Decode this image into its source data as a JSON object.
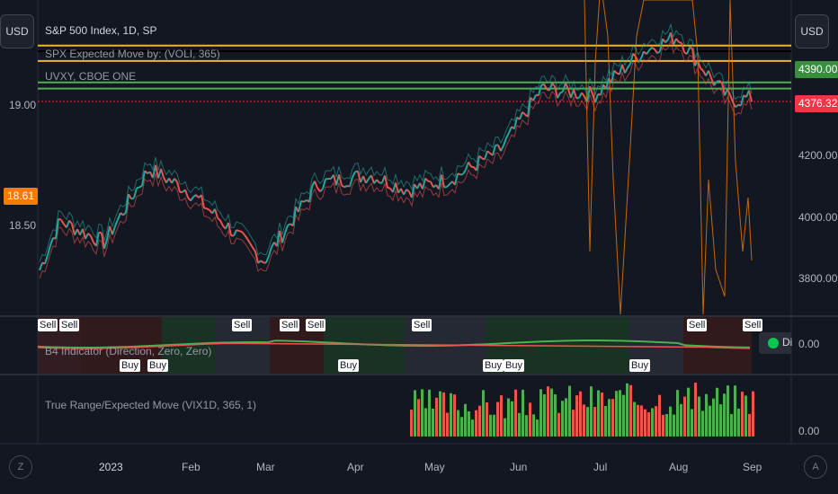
{
  "header": {
    "currency_left": "USD",
    "currency_right": "USD",
    "symbol_legend": "S&P 500 Index, 1D, SP",
    "indicator1": "SPX Expected Move by: (VOLI, 365)",
    "indicator2": "UVXY, CBOE ONE"
  },
  "price_axis": {
    "ticks": [
      "4200.00",
      "4000.00",
      "3800.00"
    ],
    "badge_upper": "4390.00",
    "badge_lower": "4376.32"
  },
  "left_axis": {
    "ticks": [
      "19.00",
      "18.50"
    ],
    "badge": "18.61"
  },
  "pane2": {
    "title": "B4 Indicator (Direction, Zero, Zero)",
    "tick": "0.00",
    "legend_dot_label": "Di",
    "sell_label": "Sell",
    "buy_label": "Buy"
  },
  "pane3": {
    "title": "True Range/Expected Move (VIX1D, 365, 1)",
    "tick": "0.00"
  },
  "time_axis": {
    "months": [
      "2023",
      "Feb",
      "Mar",
      "Apr",
      "May",
      "Jun",
      "Jul",
      "Aug",
      "Sep"
    ]
  },
  "buttons": {
    "zoom_left": "Z",
    "auto_right": "A"
  },
  "colors": {
    "up": "#26a69a",
    "down": "#ef5350",
    "gold": "#f0b429",
    "green_line": "#4caf50",
    "orange": "#f57c00",
    "badge_green": "#388e3c",
    "badge_red": "#f23645"
  },
  "chart_data": {
    "type": "line",
    "title": "S&P 500 Index, 1D, SP",
    "x": [
      "2022-12-27",
      "2023-01-03",
      "2023-01-18",
      "2023-02-02",
      "2023-02-15",
      "2023-03-01",
      "2023-03-13",
      "2023-03-31",
      "2023-04-18",
      "2023-05-01",
      "2023-05-16",
      "2023-06-01",
      "2023-06-15",
      "2023-07-03",
      "2023-07-19",
      "2023-07-31",
      "2023-08-10",
      "2023-08-18",
      "2023-08-25"
    ],
    "series": [
      {
        "name": "S&P 500 Index, 1D, SP",
        "values": [
          3830,
          3990,
          3920,
          4160,
          4090,
          3970,
          3860,
          4110,
          4140,
          4090,
          4130,
          4220,
          4420,
          4400,
          4540,
          4590,
          4470,
          4380,
          4390
        ]
      }
    ],
    "ylim": [
      3700,
      4650
    ],
    "lines": {
      "gold_upper": 4560,
      "gold_lower": 4510,
      "green_upper": 4440,
      "green_lower": 4420
    }
  }
}
